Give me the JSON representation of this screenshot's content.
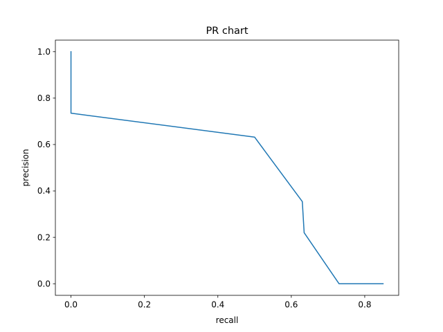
{
  "chart_data": {
    "type": "line",
    "title": "PR chart",
    "xlabel": "recall",
    "ylabel": "precision",
    "xlim": [
      -0.0425,
      0.8925
    ],
    "ylim": [
      -0.05,
      1.05
    ],
    "xticks": [
      0.0,
      0.2,
      0.4,
      0.6,
      0.8
    ],
    "xtick_labels": [
      "0.0",
      "0.2",
      "0.4",
      "0.6",
      "0.8"
    ],
    "yticks": [
      0.0,
      0.2,
      0.4,
      0.6,
      0.8,
      1.0
    ],
    "ytick_labels": [
      "0.0",
      "0.2",
      "0.4",
      "0.6",
      "0.8",
      "1.0"
    ],
    "grid": false,
    "series": [
      {
        "color": "#1f77b4",
        "x": [
          0.0,
          0.0,
          0.5,
          0.63,
          0.635,
          0.73,
          0.85
        ],
        "y": [
          1.0,
          0.735,
          0.632,
          0.354,
          0.22,
          0.0,
          0.0
        ]
      }
    ]
  }
}
